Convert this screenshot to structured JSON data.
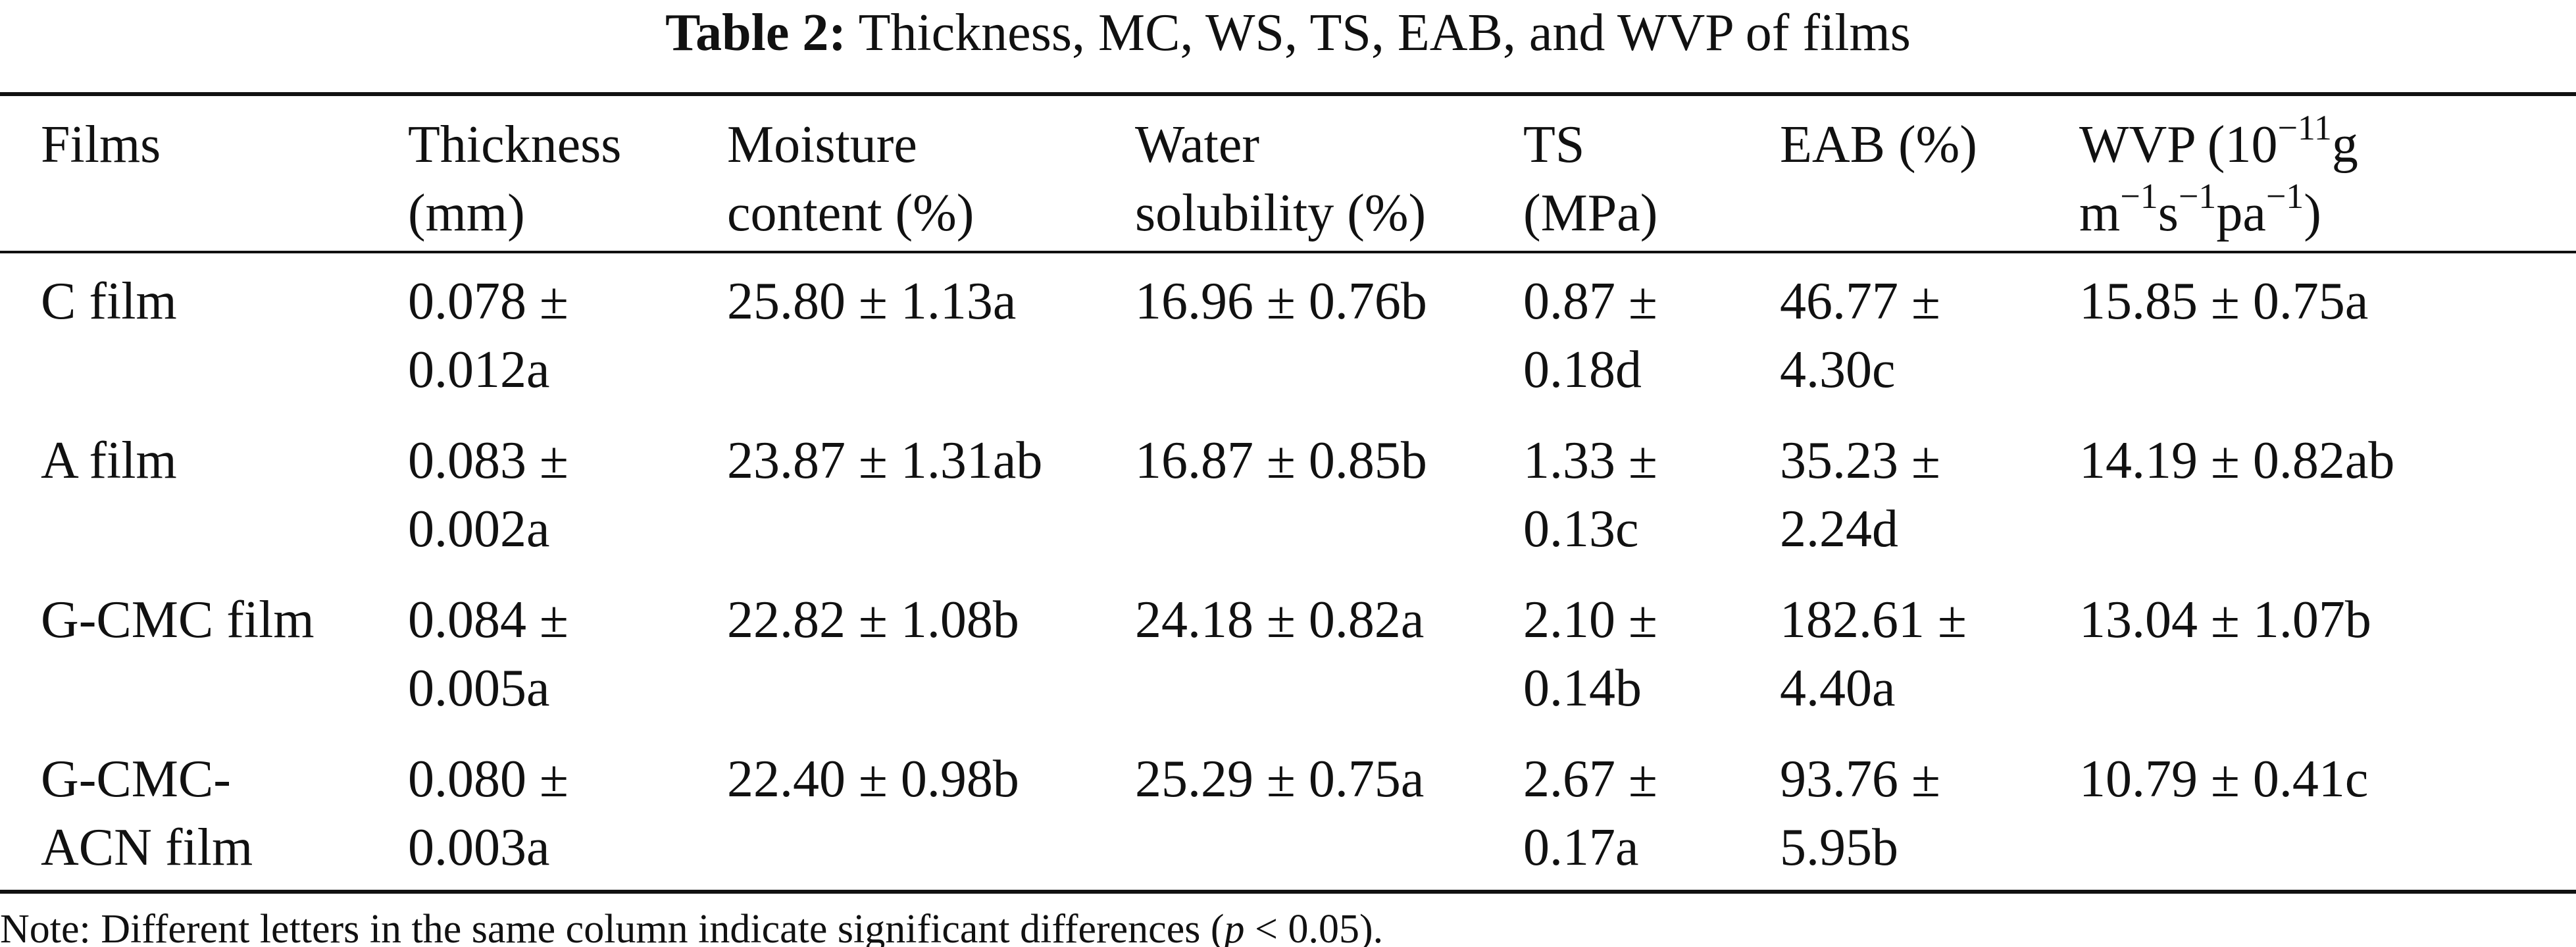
{
  "caption": {
    "label": "Table 2:",
    "text": "Thickness, MC, WS, TS, EAB, and WVP of films"
  },
  "columns": [
    {
      "line1": "Films",
      "line2": ""
    },
    {
      "line1": "Thickness",
      "line2": "(mm)"
    },
    {
      "line1": "Moisture",
      "line2": "content (%)"
    },
    {
      "line1": "Water",
      "line2": "solubility (%)"
    },
    {
      "line1": "TS",
      "line2": "(MPa)"
    },
    {
      "line1": "EAB (%)",
      "line2": ""
    },
    {
      "line1_pre": "WVP (10",
      "line1_sup": "−11",
      "line1_post": "g",
      "line2_a": "m",
      "line2_a_sup": "−1",
      "line2_b": "s",
      "line2_b_sup": "−1",
      "line2_c": "pa",
      "line2_c_sup": "−1",
      "line2_end": ")"
    }
  ],
  "rows": [
    {
      "film": [
        "C film",
        ""
      ],
      "thickness": [
        "0.078 ±",
        "0.012a"
      ],
      "moisture": "25.80 ± 1.13a",
      "solubility": "16.96 ± 0.76b",
      "ts": [
        "0.87 ±",
        "0.18d"
      ],
      "eab": [
        "46.77 ±",
        "4.30c"
      ],
      "wvp": "15.85 ± 0.75a"
    },
    {
      "film": [
        "A film",
        ""
      ],
      "thickness": [
        "0.083 ±",
        "0.002a"
      ],
      "moisture": "23.87 ± 1.31ab",
      "solubility": "16.87 ± 0.85b",
      "ts": [
        "1.33 ±",
        "0.13c"
      ],
      "eab": [
        "35.23 ±",
        "2.24d"
      ],
      "wvp": "14.19 ± 0.82ab"
    },
    {
      "film": [
        "G-CMC film",
        ""
      ],
      "thickness": [
        "0.084 ±",
        "0.005a"
      ],
      "moisture": "22.82 ± 1.08b",
      "solubility": "24.18 ± 0.82a",
      "ts": [
        "2.10 ±",
        "0.14b"
      ],
      "eab": [
        "182.61 ±",
        "4.40a"
      ],
      "wvp": "13.04 ± 1.07b"
    },
    {
      "film": [
        "G-CMC-",
        "ACN film"
      ],
      "thickness": [
        "0.080 ±",
        "0.003a"
      ],
      "moisture": "22.40 ± 0.98b",
      "solubility": "25.29 ± 0.75a",
      "ts": [
        "2.67 ±",
        "0.17a"
      ],
      "eab": [
        "93.76 ±",
        "5.95b"
      ],
      "wvp": "10.79 ± 0.41c"
    }
  ],
  "note": {
    "pre": "Note: Different letters in the same column indicate significant differences (",
    "italic": "p",
    "post": " < 0.05)."
  }
}
